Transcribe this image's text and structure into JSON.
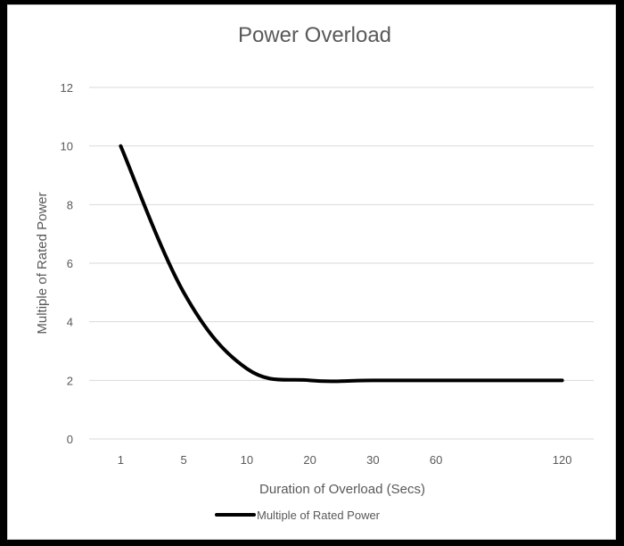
{
  "chart_data": {
    "type": "line",
    "title": "Power Overload",
    "xlabel": "Duration of Overload (Secs)",
    "ylabel": "Multiple of Rated Power",
    "categories": [
      "1",
      "5",
      "10",
      "20",
      "30",
      "60",
      "120"
    ],
    "x_positions": [
      1,
      2,
      3,
      4,
      5,
      6,
      8
    ],
    "x_range": [
      0.5,
      8.5
    ],
    "ylim": [
      0,
      12
    ],
    "y_ticks": [
      0,
      2,
      4,
      6,
      8,
      10,
      12
    ],
    "grid": true,
    "legend_placement": "bottom",
    "series": [
      {
        "name": "Multiple of Rated Power",
        "color": "#000000",
        "values": [
          10,
          5,
          2.4,
          2,
          2,
          2,
          2
        ]
      }
    ]
  }
}
